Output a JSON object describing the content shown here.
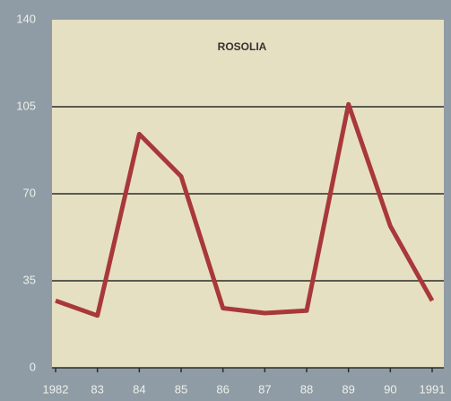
{
  "chart_data": {
    "type": "line",
    "title": "ROSOLIA",
    "categories": [
      "1982",
      "83",
      "84",
      "85",
      "86",
      "87",
      "88",
      "89",
      "90",
      "1991"
    ],
    "series": [
      {
        "name": "Rosolia",
        "color": "#a8383a",
        "values": [
          27,
          21,
          94,
          77,
          24,
          22,
          23,
          106,
          57,
          27
        ]
      }
    ],
    "ylim": [
      0,
      140
    ],
    "yticks": [
      0,
      35,
      70,
      105,
      140
    ],
    "grid": true
  }
}
